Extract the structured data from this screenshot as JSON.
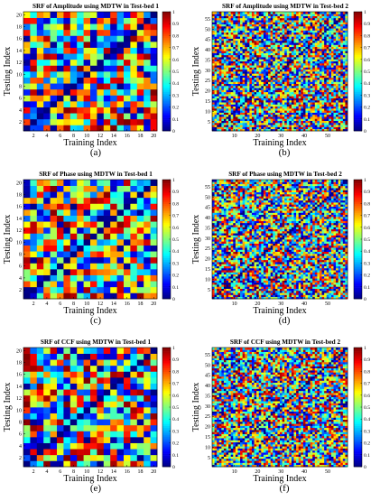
{
  "figure": {
    "captions": [
      "(a)",
      "(b)",
      "(c)",
      "(d)",
      "(e)",
      "(f)"
    ]
  },
  "colorscale": {
    "name": "jet",
    "ticks": [
      "0",
      "0.1",
      "0.2",
      "0.3",
      "0.4",
      "0.5",
      "0.6",
      "0.7",
      "0.8",
      "0.9",
      "1"
    ],
    "range": [
      0,
      1
    ]
  },
  "chart_data": [
    {
      "type": "heatmap",
      "title": "SRF of Amplitude using MDTW in Test-bed 1",
      "xlabel": "Training Index",
      "ylabel": "Testing Index",
      "size": 20,
      "xticks": [
        "2",
        "4",
        "6",
        "8",
        "10",
        "12",
        "14",
        "16",
        "18",
        "20"
      ],
      "yticks": [
        "2",
        "4",
        "6",
        "8",
        "10",
        "12",
        "14",
        "16",
        "18",
        "20"
      ],
      "values": "20x20 approximate similarity values in [0,1], diagonal = 0",
      "seed": 11
    },
    {
      "type": "heatmap",
      "title": "SRF of Amplitude using MDTW in Test-bed 2",
      "xlabel": "Training Index",
      "ylabel": "Testing Index",
      "size": 58,
      "xticks": [
        "10",
        "20",
        "30",
        "40",
        "50"
      ],
      "yticks": [
        "5",
        "10",
        "15",
        "20",
        "25",
        "30",
        "35",
        "40",
        "45",
        "50",
        "55"
      ],
      "values": "58x58 approximate similarity values in [0,1], diagonal = 0",
      "seed": 23
    },
    {
      "type": "heatmap",
      "title": "SRF of Phase using MDTW in Test-bed 1",
      "xlabel": "Training Index",
      "ylabel": "Testing Index",
      "size": 20,
      "xticks": [
        "2",
        "4",
        "6",
        "8",
        "10",
        "12",
        "14",
        "16",
        "18",
        "20"
      ],
      "yticks": [
        "2",
        "4",
        "6",
        "8",
        "10",
        "12",
        "14",
        "16",
        "18",
        "20"
      ],
      "values": "20x20 approximate similarity values in [0,1], diagonal = 0",
      "seed": 37
    },
    {
      "type": "heatmap",
      "title": "SRF of Phase using MDTW in Test-bed 2",
      "xlabel": "Training Index",
      "ylabel": "Testing Index",
      "size": 58,
      "xticks": [
        "10",
        "20",
        "30",
        "40",
        "50"
      ],
      "yticks": [
        "5",
        "10",
        "15",
        "20",
        "25",
        "30",
        "35",
        "40",
        "45",
        "50",
        "55"
      ],
      "values": "58x58 approximate similarity values in [0,1], diagonal = 0",
      "seed": 41
    },
    {
      "type": "heatmap",
      "title": "SRF of CCF using MDTW in Test-bed 1",
      "xlabel": "Training Index",
      "ylabel": "Testing Index",
      "size": 20,
      "xticks": [
        "2",
        "4",
        "6",
        "8",
        "10",
        "12",
        "14",
        "16",
        "18",
        "20"
      ],
      "yticks": [
        "2",
        "4",
        "6",
        "8",
        "10",
        "12",
        "14",
        "16",
        "18",
        "20"
      ],
      "values": "20x20 approximate similarity values in [0,1], diagonal = 0",
      "seed": 53
    },
    {
      "type": "heatmap",
      "title": "SRF of CCF using MDTW in Test-bed 2",
      "xlabel": "Training Index",
      "ylabel": "Testing Index",
      "size": 58,
      "xticks": [
        "10",
        "20",
        "30",
        "40",
        "50"
      ],
      "yticks": [
        "5",
        "10",
        "15",
        "20",
        "25",
        "30",
        "35",
        "40",
        "45",
        "50",
        "55"
      ],
      "values": "58x58 approximate similarity values in [0,1], diagonal = 0",
      "seed": 67
    }
  ]
}
